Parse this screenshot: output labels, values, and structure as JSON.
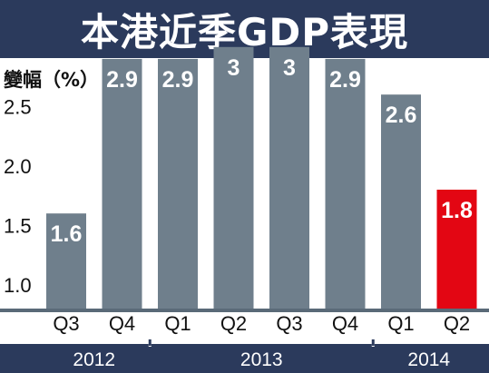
{
  "title": "本港近季GDP表現",
  "colors": {
    "header_bg": "#2b3a5c",
    "bar": "#6f7f8c",
    "highlight_bar": "#e30613",
    "baseline": "#5a6a78",
    "year_band": "#2b3a5c"
  },
  "chart_data": {
    "type": "bar",
    "title": "本港近季GDP表現",
    "ylabel": "變幅（%）",
    "xlabel": "",
    "ylim": [
      0.8,
      3.0
    ],
    "yticks": [
      "2.5",
      "2.0",
      "1.5",
      "1.0"
    ],
    "ytick_values": [
      2.5,
      2.0,
      1.5,
      1.0
    ],
    "categories": [
      "Q3",
      "Q4",
      "Q1",
      "Q2",
      "Q3",
      "Q4",
      "Q1",
      "Q2"
    ],
    "years": [
      "2012",
      "2012",
      "2013",
      "2013",
      "2013",
      "2013",
      "2014",
      "2014"
    ],
    "year_groups": [
      {
        "label": "2012",
        "count": 2
      },
      {
        "label": "2013",
        "count": 4
      },
      {
        "label": "2014",
        "count": 2
      }
    ],
    "values": [
      1.6,
      2.9,
      2.9,
      3.0,
      3.0,
      2.9,
      2.6,
      1.8
    ],
    "value_labels": [
      "1.6",
      "2.9",
      "2.9",
      "3",
      "3",
      "2.9",
      "2.6",
      "1.8"
    ],
    "highlight_index": 7,
    "grid": false,
    "legend": "none"
  }
}
